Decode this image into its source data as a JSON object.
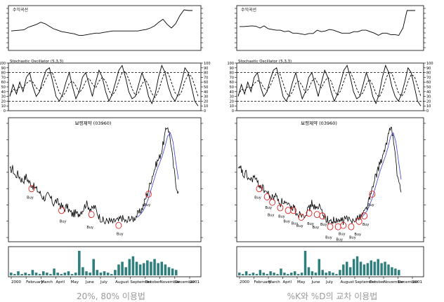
{
  "chart_data": [
    {
      "type": "line",
      "panel": "left",
      "caption": "20%, 80% 이용법",
      "equity_title": "수익곡선",
      "equity": [
        0.42,
        0.43,
        0.44,
        0.45,
        0.52,
        0.56,
        0.6,
        0.66,
        0.62,
        0.55,
        0.48,
        0.44,
        0.4,
        0.38,
        0.36,
        0.34,
        0.3,
        0.3,
        0.32,
        0.34,
        0.36,
        0.36,
        0.38,
        0.4,
        0.42,
        0.42,
        0.42,
        0.42,
        0.42,
        0.42,
        0.42,
        0.44,
        0.46,
        0.5,
        0.56,
        0.66,
        0.74,
        0.6,
        0.5,
        0.62,
        0.84,
        1.0,
        0.98,
        0.98
      ],
      "stoch_title": "Stochastic Oscillator (5,3,3)",
      "stoch_yticks": [
        0,
        10,
        20,
        30,
        40,
        50,
        60,
        70,
        80,
        90,
        100
      ],
      "stoch_levels": [
        20,
        80
      ],
      "stoch_k": [
        30,
        55,
        35,
        60,
        40,
        70,
        80,
        50,
        30,
        40,
        65,
        85,
        90,
        60,
        30,
        20,
        35,
        60,
        80,
        50,
        25,
        40,
        70,
        80,
        55,
        30,
        60,
        85,
        70,
        40,
        20,
        35,
        60,
        85,
        95,
        70,
        40,
        25,
        30,
        55,
        80,
        60,
        30,
        15,
        35,
        70,
        95,
        80,
        50,
        30,
        20,
        35,
        60,
        90,
        80,
        50,
        20,
        10
      ],
      "stoch_d": [
        32,
        45,
        42,
        50,
        48,
        57,
        63,
        60,
        48,
        42,
        52,
        68,
        80,
        78,
        58,
        38,
        30,
        40,
        58,
        62,
        52,
        38,
        46,
        62,
        68,
        56,
        48,
        62,
        70,
        62,
        42,
        32,
        42,
        62,
        80,
        82,
        66,
        46,
        32,
        38,
        56,
        66,
        54,
        36,
        28,
        42,
        64,
        82,
        78,
        58,
        38,
        30,
        40,
        62,
        76,
        72,
        52,
        30
      ],
      "price_title": "보령제약 (03960)",
      "price": [
        64,
        66,
        60,
        62,
        58,
        57,
        60,
        56,
        54,
        52,
        50,
        48,
        45,
        44,
        46,
        44,
        40,
        42,
        40,
        38,
        36,
        38,
        34,
        32,
        33,
        32,
        34,
        36,
        40,
        38,
        35,
        38,
        34,
        30,
        28,
        26,
        28,
        27,
        26,
        28,
        27,
        30,
        28,
        26,
        30,
        28,
        30,
        32,
        34,
        38,
        44,
        50,
        58,
        64,
        70,
        74,
        80,
        90,
        98,
        88,
        70,
        55,
        48
      ],
      "buy_labels": [
        "Buy",
        "Buy",
        "Buy",
        "Buy",
        "Buy"
      ],
      "volume": [
        2,
        1,
        3,
        1,
        2,
        1,
        4,
        2,
        1,
        3,
        2,
        1,
        5,
        2,
        1,
        2,
        3,
        1,
        2,
        18,
        6,
        3,
        2,
        12,
        4,
        2,
        3,
        2,
        1,
        4,
        8,
        10,
        6,
        12,
        14,
        10,
        8,
        9,
        11,
        10,
        12,
        9,
        10,
        8,
        6,
        5,
        4
      ],
      "x_labels": [
        "2000",
        "February",
        "March",
        "April",
        "May",
        "June",
        "July",
        "August",
        "September",
        "October",
        "November",
        "December",
        "2001"
      ]
    },
    {
      "type": "line",
      "panel": "right",
      "caption": "%K와 %D의 교차 이용법",
      "equity_title": "수익곡선",
      "equity": [
        0.54,
        0.54,
        0.55,
        0.56,
        0.55,
        0.5,
        0.56,
        0.48,
        0.46,
        0.44,
        0.44,
        0.4,
        0.42,
        0.36,
        0.36,
        0.34,
        0.32,
        0.35,
        0.35,
        0.44,
        0.4,
        0.42,
        0.46,
        0.44,
        0.4,
        0.36,
        0.36,
        0.36,
        0.4,
        0.4,
        0.44,
        0.44,
        0.4,
        0.36,
        0.3,
        0.36,
        0.36,
        0.32,
        0.32,
        0.3,
        0.5,
        0.98,
        0.98,
        0.98
      ],
      "stoch_title": "Stochastic Oscillator (5,3,3)",
      "stoch_yticks": [
        0,
        10,
        20,
        30,
        40,
        50,
        60,
        70,
        80,
        90,
        100
      ],
      "stoch_levels": [
        20,
        80
      ],
      "stoch_k": [
        30,
        55,
        35,
        60,
        40,
        70,
        80,
        50,
        30,
        40,
        65,
        85,
        90,
        60,
        30,
        20,
        35,
        60,
        80,
        50,
        25,
        40,
        70,
        80,
        55,
        30,
        60,
        85,
        70,
        40,
        20,
        35,
        60,
        85,
        95,
        70,
        40,
        25,
        30,
        55,
        80,
        60,
        30,
        15,
        35,
        70,
        95,
        80,
        50,
        30,
        20,
        35,
        60,
        90,
        80,
        50,
        20,
        10
      ],
      "stoch_d": [
        32,
        45,
        42,
        50,
        48,
        57,
        63,
        60,
        48,
        42,
        52,
        68,
        80,
        78,
        58,
        38,
        30,
        40,
        58,
        62,
        52,
        38,
        46,
        62,
        68,
        56,
        48,
        62,
        70,
        62,
        42,
        32,
        42,
        62,
        80,
        82,
        66,
        46,
        32,
        38,
        56,
        66,
        54,
        36,
        28,
        42,
        64,
        82,
        78,
        58,
        38,
        30,
        40,
        62,
        76,
        72,
        52,
        30
      ],
      "price_title": "보령제약 (03960)",
      "price": [
        64,
        66,
        60,
        62,
        58,
        57,
        60,
        56,
        54,
        52,
        50,
        48,
        45,
        44,
        46,
        44,
        40,
        42,
        40,
        38,
        36,
        38,
        34,
        32,
        33,
        32,
        34,
        36,
        40,
        38,
        35,
        38,
        34,
        30,
        28,
        26,
        28,
        27,
        26,
        28,
        27,
        30,
        28,
        26,
        30,
        28,
        30,
        32,
        34,
        38,
        44,
        50,
        58,
        64,
        70,
        74,
        80,
        90,
        98,
        88,
        70,
        55,
        48
      ],
      "buy_labels": [
        "Buy",
        "Buy",
        "Buy",
        "Buy",
        "Buy",
        "Buy",
        "Buy",
        "Buy",
        "Buy",
        "Buy",
        "Buy",
        "Buy",
        "Buy",
        "Buy",
        "Buy",
        "Buy",
        "Buy"
      ],
      "volume": [
        2,
        1,
        3,
        1,
        2,
        1,
        4,
        2,
        1,
        3,
        2,
        1,
        5,
        2,
        1,
        2,
        3,
        1,
        2,
        18,
        6,
        3,
        2,
        12,
        4,
        2,
        3,
        2,
        1,
        4,
        8,
        10,
        6,
        12,
        14,
        10,
        8,
        9,
        11,
        10,
        12,
        9,
        10,
        8,
        6,
        5,
        4
      ],
      "x_labels": [
        "2000",
        "February",
        "March",
        "April",
        "May",
        "June",
        "July",
        "August",
        "September",
        "October",
        "November",
        "December",
        "2001"
      ]
    }
  ]
}
